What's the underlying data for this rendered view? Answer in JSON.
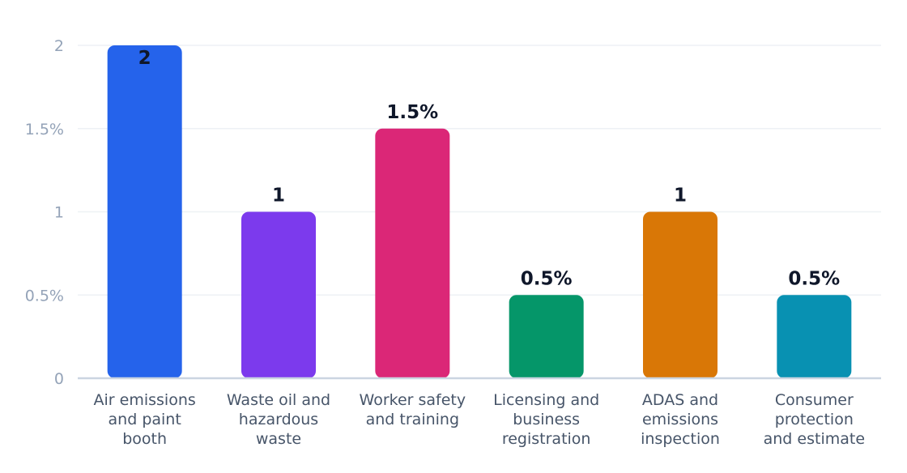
{
  "chart_data": {
    "type": "bar",
    "title": "",
    "xlabel": "",
    "ylabel": "",
    "ylim": [
      0,
      2
    ],
    "grid": true,
    "legend": "none",
    "categories": [
      [
        "Air emissions",
        "and paint",
        "booth"
      ],
      [
        "Waste oil and",
        "hazardous",
        "waste"
      ],
      [
        "Worker safety",
        "and training"
      ],
      [
        "Licensing and",
        "business",
        "registration"
      ],
      [
        "ADAS and",
        "emissions",
        "inspection"
      ],
      [
        "Consumer",
        "protection",
        "and estimate"
      ]
    ],
    "values": [
      2,
      1,
      1.5,
      0.5,
      1,
      0.5
    ],
    "data_labels": [
      "2",
      "1",
      "1.5%",
      "0.5%",
      "1",
      "0.5%"
    ],
    "colors": [
      "#2563eb",
      "#7c3aed",
      "#db2777",
      "#059669",
      "#d97706",
      "#0891b2"
    ],
    "y_ticks": [
      {
        "value": 0,
        "label": "0"
      },
      {
        "value": 0.5,
        "label": "0.5%"
      },
      {
        "value": 1,
        "label": "1"
      },
      {
        "value": 1.5,
        "label": "1.5%"
      },
      {
        "value": 2,
        "label": "2"
      }
    ]
  }
}
